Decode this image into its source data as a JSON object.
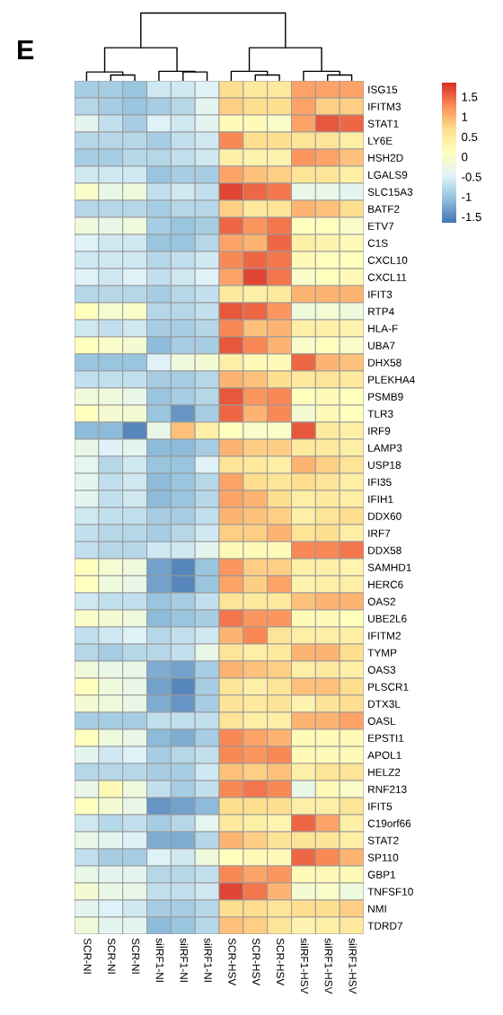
{
  "chart_data": {
    "type": "heatmap",
    "annotations": [
      "E"
    ],
    "categories": [
      "SCR-NI",
      "SCR-NI",
      "SCR-NI",
      "siIRF1-NI",
      "siIRF1-NI",
      "siIRF1-NI",
      "SCR-HSV",
      "SCR-HSV",
      "SCR-HSV",
      "siIRF1-HSV",
      "siIRF1-HSV",
      "siIRF1-HSV"
    ],
    "y_categories": [
      "ISG15",
      "IFITM3",
      "STAT1",
      "LY6E",
      "HSH2D",
      "LGALS9",
      "SLC15A3",
      "BATF2",
      "ETV7",
      "C1S",
      "CXCL10",
      "CXCL11",
      "IFIT3",
      "RTP4",
      "HLA-F",
      "UBA7",
      "DHX58",
      "PLEKHA4",
      "PSMB9",
      "TLR3",
      "IRF9",
      "LAMP3",
      "USP18",
      "IFI35",
      "IFIH1",
      "DDX60",
      "IRF7",
      "DDX58",
      "SAMHD1",
      "HERC6",
      "OAS2",
      "UBE2L6",
      "IFITM2",
      "TYMP",
      "OAS3",
      "PLSCR1",
      "DTX3L",
      "OASL",
      "EPSTI1",
      "APOL1",
      "HELZ2",
      "RNF213",
      "IFIT5",
      "C19orf66",
      "STAT2",
      "SP110",
      "GBP1",
      "TNFSF10",
      "NMI",
      "TDRD7"
    ],
    "cells": [
      [
        -0.9,
        -0.9,
        -1.0,
        -0.6,
        -0.6,
        -0.5,
        0.7,
        0.5,
        0.5,
        1.1,
        1.1,
        1.1
      ],
      [
        -0.8,
        -0.9,
        -1.0,
        -0.9,
        -0.8,
        -0.4,
        0.8,
        0.7,
        0.7,
        1.1,
        0.8,
        0.8
      ],
      [
        -0.4,
        -0.7,
        -0.9,
        -0.5,
        -0.6,
        -0.4,
        0.2,
        0.2,
        0.0,
        1.1,
        1.6,
        1.5
      ],
      [
        -0.8,
        -0.8,
        -0.8,
        -0.9,
        -0.7,
        -0.6,
        1.3,
        0.7,
        0.7,
        0.6,
        0.6,
        0.4
      ],
      [
        -0.9,
        -0.9,
        -0.8,
        -0.8,
        -0.7,
        -0.6,
        0.4,
        0.3,
        0.3,
        1.2,
        1.1,
        0.9
      ],
      [
        -0.6,
        -0.6,
        -0.6,
        -1.0,
        -0.9,
        -0.9,
        1.1,
        0.9,
        0.8,
        0.6,
        0.6,
        0.4
      ],
      [
        0.0,
        -0.3,
        -0.2,
        -0.7,
        -0.6,
        -0.7,
        1.7,
        1.5,
        1.4,
        -0.3,
        -0.3,
        -0.4
      ],
      [
        -0.8,
        -0.8,
        -0.8,
        -0.9,
        -0.8,
        -0.8,
        0.8,
        0.5,
        0.6,
        1.0,
        0.9,
        0.7
      ],
      [
        -0.2,
        -0.3,
        -0.2,
        -0.9,
        -1.0,
        -0.9,
        1.5,
        1.2,
        1.4,
        0.1,
        0.1,
        0.0
      ],
      [
        -0.5,
        -0.6,
        -0.6,
        -1.0,
        -1.0,
        -0.8,
        1.1,
        1.0,
        1.5,
        0.4,
        0.3,
        0.2
      ],
      [
        -0.6,
        -0.6,
        -0.6,
        -0.8,
        -0.7,
        -0.6,
        1.3,
        1.5,
        1.4,
        0.2,
        0.1,
        0.1
      ],
      [
        -0.5,
        -0.6,
        -0.5,
        -0.7,
        -0.6,
        -0.5,
        1.1,
        1.7,
        1.4,
        0.0,
        0.1,
        0.2
      ],
      [
        -0.8,
        -0.8,
        -0.8,
        -0.9,
        -0.8,
        -0.7,
        0.5,
        0.4,
        0.5,
        1.0,
        1.0,
        1.0
      ],
      [
        0.1,
        -0.1,
        0.0,
        -0.8,
        -0.8,
        -0.7,
        1.6,
        1.5,
        1.2,
        -0.2,
        -0.1,
        -0.2
      ],
      [
        -0.6,
        -0.7,
        -0.6,
        -0.9,
        -0.9,
        -0.8,
        1.3,
        0.9,
        1.0,
        0.4,
        0.4,
        0.3
      ],
      [
        0.1,
        0.0,
        -0.1,
        -1.1,
        -0.9,
        -0.9,
        1.6,
        1.3,
        1.0,
        0.0,
        0.1,
        0.0
      ],
      [
        -1.0,
        -1.0,
        -1.0,
        -0.5,
        -0.2,
        -0.1,
        0.4,
        0.2,
        0.2,
        1.5,
        1.0,
        0.9
      ],
      [
        -0.7,
        -0.7,
        -0.7,
        -0.9,
        -0.9,
        -0.8,
        1.0,
        0.9,
        0.7,
        0.5,
        0.6,
        0.5
      ],
      [
        -0.2,
        -0.2,
        -0.3,
        -1.0,
        -0.9,
        -0.8,
        1.6,
        1.2,
        1.3,
        0.1,
        0.2,
        0.1
      ],
      [
        0.1,
        -0.1,
        -0.1,
        -1.0,
        -1.4,
        -0.9,
        1.5,
        1.0,
        1.3,
        -0.1,
        0.2,
        0.1
      ],
      [
        -1.1,
        -1.1,
        -1.5,
        -0.3,
        0.9,
        0.4,
        0.1,
        0.0,
        0.0,
        1.6,
        0.5,
        0.4
      ],
      [
        -0.3,
        -0.5,
        -0.4,
        -1.1,
        -1.1,
        -0.9,
        1.0,
        0.8,
        0.8,
        0.5,
        0.5,
        0.4
      ],
      [
        -0.4,
        -0.8,
        -0.6,
        -1.0,
        -1.0,
        -0.5,
        0.6,
        0.5,
        0.4,
        1.0,
        0.8,
        0.6
      ],
      [
        -0.4,
        -0.7,
        -0.6,
        -1.1,
        -1.0,
        -0.8,
        1.1,
        0.7,
        0.6,
        0.7,
        0.6,
        0.4
      ],
      [
        -0.4,
        -0.7,
        -0.6,
        -1.1,
        -1.0,
        -0.8,
        1.1,
        1.0,
        0.7,
        0.4,
        0.5,
        0.4
      ],
      [
        -0.6,
        -0.7,
        -0.7,
        -0.9,
        -0.9,
        -0.7,
        1.0,
        0.9,
        0.8,
        0.4,
        0.6,
        0.7
      ],
      [
        -0.7,
        -0.8,
        -0.8,
        -0.9,
        -0.8,
        -0.6,
        0.8,
        0.8,
        1.0,
        0.6,
        0.7,
        0.4
      ],
      [
        -0.7,
        -0.8,
        -0.8,
        -0.6,
        -0.6,
        -0.4,
        0.2,
        0.2,
        0.2,
        1.3,
        1.3,
        1.4
      ],
      [
        0.1,
        -0.1,
        -0.2,
        -1.3,
        -1.5,
        -1.0,
        1.2,
        0.8,
        0.8,
        0.4,
        0.4,
        0.3
      ],
      [
        0.1,
        -0.2,
        -0.3,
        -1.3,
        -1.5,
        -1.0,
        1.1,
        0.8,
        1.1,
        0.3,
        0.4,
        0.4
      ],
      [
        -0.6,
        -0.7,
        -0.7,
        -1.0,
        -0.9,
        -0.7,
        0.6,
        0.5,
        0.5,
        0.9,
        1.0,
        1.0
      ],
      [
        0.0,
        -0.1,
        -0.2,
        -1.1,
        -1.0,
        -0.9,
        1.4,
        1.2,
        1.2,
        0.2,
        0.2,
        0.1
      ],
      [
        -0.7,
        -0.6,
        -0.5,
        -0.8,
        -0.7,
        -0.6,
        1.0,
        1.3,
        0.6,
        0.4,
        0.4,
        0.4
      ],
      [
        -0.8,
        -0.9,
        -0.8,
        -0.8,
        -0.7,
        -0.3,
        0.6,
        0.4,
        0.5,
        1.0,
        1.0,
        0.7
      ],
      [
        -0.2,
        -0.3,
        -0.3,
        -1.2,
        -1.3,
        -0.9,
        1.0,
        0.9,
        0.8,
        0.4,
        0.5,
        0.4
      ],
      [
        0.1,
        -0.2,
        -0.3,
        -1.3,
        -1.5,
        -0.9,
        0.6,
        0.4,
        0.6,
        0.9,
        0.9,
        0.7
      ],
      [
        -0.1,
        -0.2,
        -0.3,
        -1.2,
        -1.4,
        -0.9,
        0.6,
        0.5,
        0.6,
        0.3,
        0.6,
        0.7
      ],
      [
        -0.9,
        -0.9,
        -0.9,
        -0.7,
        -0.7,
        -0.7,
        0.6,
        0.4,
        0.4,
        1.0,
        1.0,
        1.1
      ],
      [
        0.1,
        -0.2,
        -0.3,
        -1.1,
        -1.2,
        -0.9,
        1.3,
        1.1,
        1.0,
        0.2,
        0.2,
        0.2
      ],
      [
        -0.4,
        -0.6,
        -0.5,
        -0.9,
        -0.8,
        -0.7,
        1.3,
        1.2,
        1.3,
        0.2,
        0.2,
        0.2
      ],
      [
        -0.8,
        -0.8,
        -0.8,
        -0.9,
        -0.9,
        -0.6,
        0.9,
        0.8,
        0.9,
        0.4,
        0.6,
        0.6
      ],
      [
        -0.3,
        0.2,
        -0.2,
        -0.7,
        -0.9,
        -0.7,
        1.3,
        1.4,
        1.3,
        -0.3,
        0.2,
        0.0
      ],
      [
        0.1,
        -0.1,
        -0.3,
        -1.4,
        -1.3,
        -1.1,
        0.7,
        0.7,
        0.7,
        0.4,
        0.4,
        0.6
      ],
      [
        -0.6,
        -0.8,
        -0.7,
        -0.9,
        -0.8,
        -0.4,
        0.5,
        0.4,
        0.3,
        1.5,
        1.1,
        0.4
      ],
      [
        -0.3,
        -0.4,
        -0.5,
        -1.2,
        -1.2,
        -0.8,
        1.0,
        0.8,
        0.6,
        0.6,
        0.6,
        0.4
      ],
      [
        -0.7,
        -0.9,
        -0.9,
        -0.5,
        -0.6,
        -0.2,
        0.1,
        0.2,
        0.2,
        1.5,
        1.3,
        1.0
      ],
      [
        -0.3,
        -0.4,
        -0.4,
        -0.8,
        -0.8,
        -0.7,
        1.3,
        1.1,
        1.2,
        0.2,
        0.2,
        0.2
      ],
      [
        -0.1,
        -0.3,
        -0.3,
        -0.7,
        -0.7,
        -0.6,
        1.7,
        1.4,
        1.0,
        -0.1,
        0.0,
        -0.2
      ],
      [
        -0.4,
        -0.5,
        -0.6,
        -0.9,
        -0.9,
        -0.8,
        0.7,
        0.7,
        0.6,
        0.7,
        0.7,
        0.8
      ],
      [
        -0.2,
        -0.4,
        -0.4,
        -1.1,
        -1.0,
        -0.8,
        0.9,
        0.8,
        0.6,
        0.3,
        0.4,
        0.5
      ]
    ],
    "clim": [
      -1.65,
      1.85
    ],
    "cticks": [
      -1.5,
      {
        "value": -1,
        "label": "-1"
      },
      -0.5,
      0,
      0.5,
      1,
      1.5
    ]
  }
}
